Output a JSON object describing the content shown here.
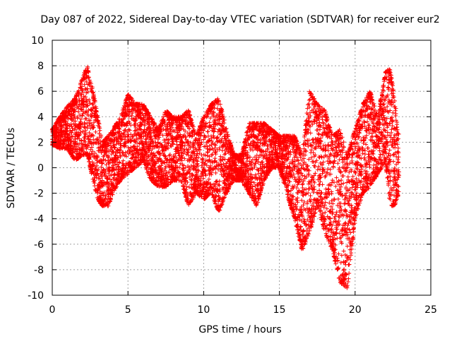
{
  "chart_data": {
    "type": "scatter",
    "title": "Day 087 of 2022, Sidereal Day-to-day VTEC variation (SDTVAR) for receiver eur2",
    "xlabel": "GPS time / hours",
    "ylabel": "SDTVAR / TECUs",
    "xlim": [
      0,
      25
    ],
    "ylim": [
      -10,
      10
    ],
    "xticks": [
      0,
      5,
      10,
      15,
      20,
      25
    ],
    "yticks": [
      -10,
      -8,
      -6,
      -4,
      -2,
      0,
      2,
      4,
      6,
      8,
      10
    ],
    "xtick_labels": [
      "0",
      "5",
      "10",
      "15",
      "20",
      "25"
    ],
    "ytick_labels": [
      "-10",
      "-8",
      "-6",
      "-4",
      "-2",
      "0",
      "2",
      "4",
      "6",
      "8",
      "10"
    ],
    "grid": true,
    "marker": "+",
    "color": "#ff0000",
    "series": [
      {
        "name": "SDTVAR",
        "envelope": [
          {
            "x": 0.0,
            "min": 1.8,
            "max": 3.0
          },
          {
            "x": 0.5,
            "min": 1.5,
            "max": 4.0
          },
          {
            "x": 1.0,
            "min": 1.5,
            "max": 4.8
          },
          {
            "x": 1.5,
            "min": 0.5,
            "max": 5.5
          },
          {
            "x": 2.0,
            "min": 1.0,
            "max": 7.0
          },
          {
            "x": 2.3,
            "min": 1.0,
            "max": 8.0
          },
          {
            "x": 2.7,
            "min": -1.0,
            "max": 6.0
          },
          {
            "x": 3.0,
            "min": -2.5,
            "max": 4.0
          },
          {
            "x": 3.3,
            "min": -3.0,
            "max": 2.0
          },
          {
            "x": 3.7,
            "min": -3.0,
            "max": 2.5
          },
          {
            "x": 4.0,
            "min": -2.0,
            "max": 3.0
          },
          {
            "x": 4.5,
            "min": -1.0,
            "max": 4.0
          },
          {
            "x": 5.0,
            "min": -0.5,
            "max": 5.8
          },
          {
            "x": 5.5,
            "min": 0.0,
            "max": 5.0
          },
          {
            "x": 6.0,
            "min": 0.5,
            "max": 5.0
          },
          {
            "x": 6.5,
            "min": -1.0,
            "max": 4.0
          },
          {
            "x": 7.0,
            "min": -1.5,
            "max": 3.0
          },
          {
            "x": 7.5,
            "min": -1.5,
            "max": 4.5
          },
          {
            "x": 8.0,
            "min": -1.0,
            "max": 4.0
          },
          {
            "x": 8.5,
            "min": -1.0,
            "max": 4.0
          },
          {
            "x": 9.0,
            "min": -3.0,
            "max": 4.5
          },
          {
            "x": 9.5,
            "min": -2.0,
            "max": 2.5
          },
          {
            "x": 10.0,
            "min": -2.5,
            "max": 4.0
          },
          {
            "x": 10.5,
            "min": -2.0,
            "max": 5.0
          },
          {
            "x": 11.0,
            "min": -3.5,
            "max": 5.5
          },
          {
            "x": 11.5,
            "min": -2.0,
            "max": 3.0
          },
          {
            "x": 12.0,
            "min": -1.0,
            "max": 1.0
          },
          {
            "x": 12.5,
            "min": -1.0,
            "max": 1.0
          },
          {
            "x": 13.0,
            "min": -2.0,
            "max": 3.5
          },
          {
            "x": 13.5,
            "min": -3.0,
            "max": 3.5
          },
          {
            "x": 14.0,
            "min": -1.0,
            "max": 3.5
          },
          {
            "x": 14.5,
            "min": 0.0,
            "max": 3.0
          },
          {
            "x": 15.0,
            "min": 0.0,
            "max": 2.5
          },
          {
            "x": 15.5,
            "min": -2.0,
            "max": 2.5
          },
          {
            "x": 16.0,
            "min": -4.0,
            "max": 2.5
          },
          {
            "x": 16.5,
            "min": -6.5,
            "max": 1.0
          },
          {
            "x": 17.0,
            "min": -5.0,
            "max": 6.0
          },
          {
            "x": 17.5,
            "min": -3.0,
            "max": 5.0
          },
          {
            "x": 18.0,
            "min": -5.0,
            "max": 4.5
          },
          {
            "x": 18.5,
            "min": -6.5,
            "max": 2.5
          },
          {
            "x": 19.0,
            "min": -9.0,
            "max": 3.0
          },
          {
            "x": 19.5,
            "min": -9.5,
            "max": 1.0
          },
          {
            "x": 20.0,
            "min": -4.0,
            "max": 3.0
          },
          {
            "x": 20.5,
            "min": -2.0,
            "max": 5.0
          },
          {
            "x": 21.0,
            "min": -1.5,
            "max": 6.0
          },
          {
            "x": 21.5,
            "min": -0.5,
            "max": 4.0
          },
          {
            "x": 22.0,
            "min": 0.5,
            "max": 7.5
          },
          {
            "x": 22.3,
            "min": -3.0,
            "max": 7.8
          },
          {
            "x": 22.6,
            "min": -3.0,
            "max": 5.5
          },
          {
            "x": 22.9,
            "min": -2.0,
            "max": 2.5
          }
        ]
      }
    ]
  }
}
